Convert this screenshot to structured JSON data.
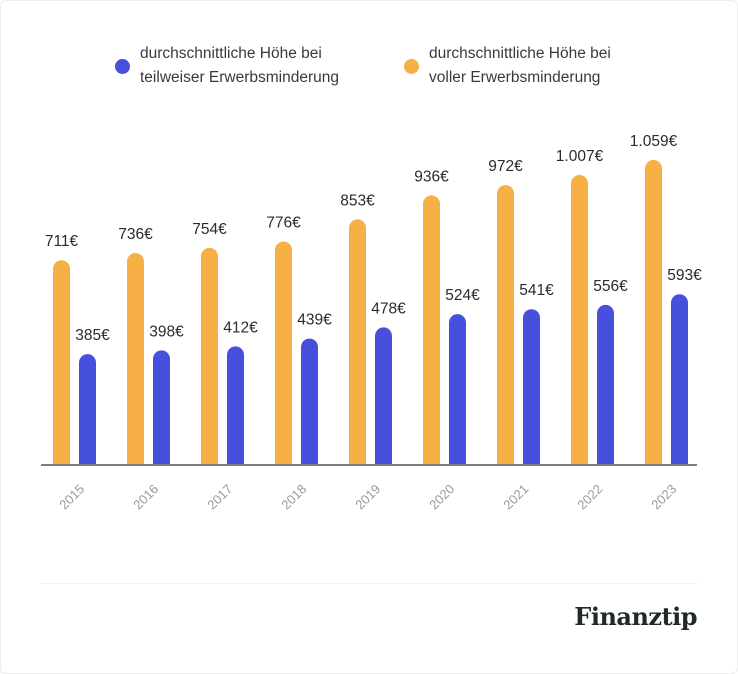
{
  "chart_data": {
    "type": "bar",
    "categories": [
      "2015",
      "2016",
      "2017",
      "2018",
      "2019",
      "2020",
      "2021",
      "2022",
      "2023"
    ],
    "series": [
      {
        "name": "durchschnittliche Höhe bei voller Erwerbsminderung",
        "color": "#f7b046",
        "values": [
          711,
          736,
          754,
          776,
          853,
          936,
          972,
          1007,
          1059
        ],
        "labels": [
          "711€",
          "736€",
          "754€",
          "776€",
          "853€",
          "936€",
          "972€",
          "1.007€",
          "1.059€"
        ]
      },
      {
        "name": "durchschnittliche Höhe bei teilweiser Erwerbsminderung",
        "color": "#4650dc",
        "values": [
          385,
          398,
          412,
          439,
          478,
          524,
          541,
          556,
          593
        ],
        "labels": [
          "385€",
          "398€",
          "412€",
          "439€",
          "478€",
          "524€",
          "541€",
          "556€",
          "593€"
        ]
      }
    ],
    "ylim": [
      0,
      1100
    ],
    "grid": false,
    "legend_position": "top"
  },
  "legend": {
    "item1": "durchschnittliche Höhe bei\nteilweiser Erwerbsminderung",
    "item2": "durchschnittliche Höhe bei\nvoller Erwerbsminderung"
  },
  "logo": "Finanztip"
}
